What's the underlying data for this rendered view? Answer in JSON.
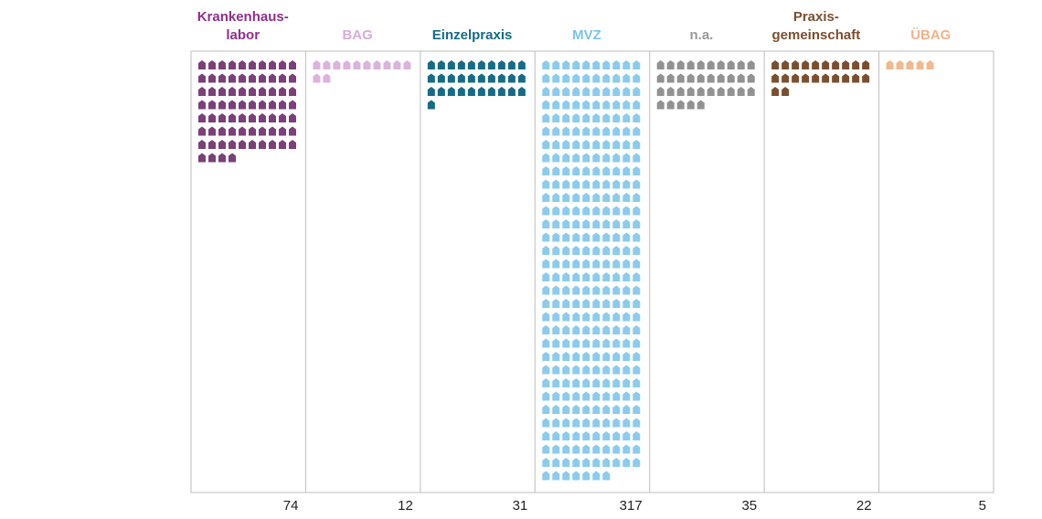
{
  "chart_data": {
    "type": "pictogram",
    "categories": [
      {
        "label_lines": [
          "Krankenhaus-",
          "labor"
        ],
        "value": 74,
        "color": "#7b3f7a",
        "label_color": "#8e2f8c"
      },
      {
        "label_lines": [
          "BAG"
        ],
        "value": 12,
        "color": "#dcb3dc",
        "label_color": "#d9abd9"
      },
      {
        "label_lines": [
          "Einzelpraxis"
        ],
        "value": 31,
        "color": "#166b86",
        "label_color": "#166b86"
      },
      {
        "label_lines": [
          "MVZ"
        ],
        "value": 317,
        "color": "#8ccbec",
        "label_color": "#7cc4e8"
      },
      {
        "label_lines": [
          "n.a."
        ],
        "value": 35,
        "color": "#929292",
        "label_color": "#9a9a9a"
      },
      {
        "label_lines": [
          "Praxis-",
          "gemeinschaft"
        ],
        "value": 22,
        "color": "#7a4f30",
        "label_color": "#7a4f30"
      },
      {
        "label_lines": [
          "ÜBAG"
        ],
        "value": 5,
        "color": "#f2b98f",
        "label_color": "#f0b28a"
      }
    ],
    "icon": "house-icon",
    "icons_per_row": 10,
    "frame_color": "#c8c8c8"
  }
}
